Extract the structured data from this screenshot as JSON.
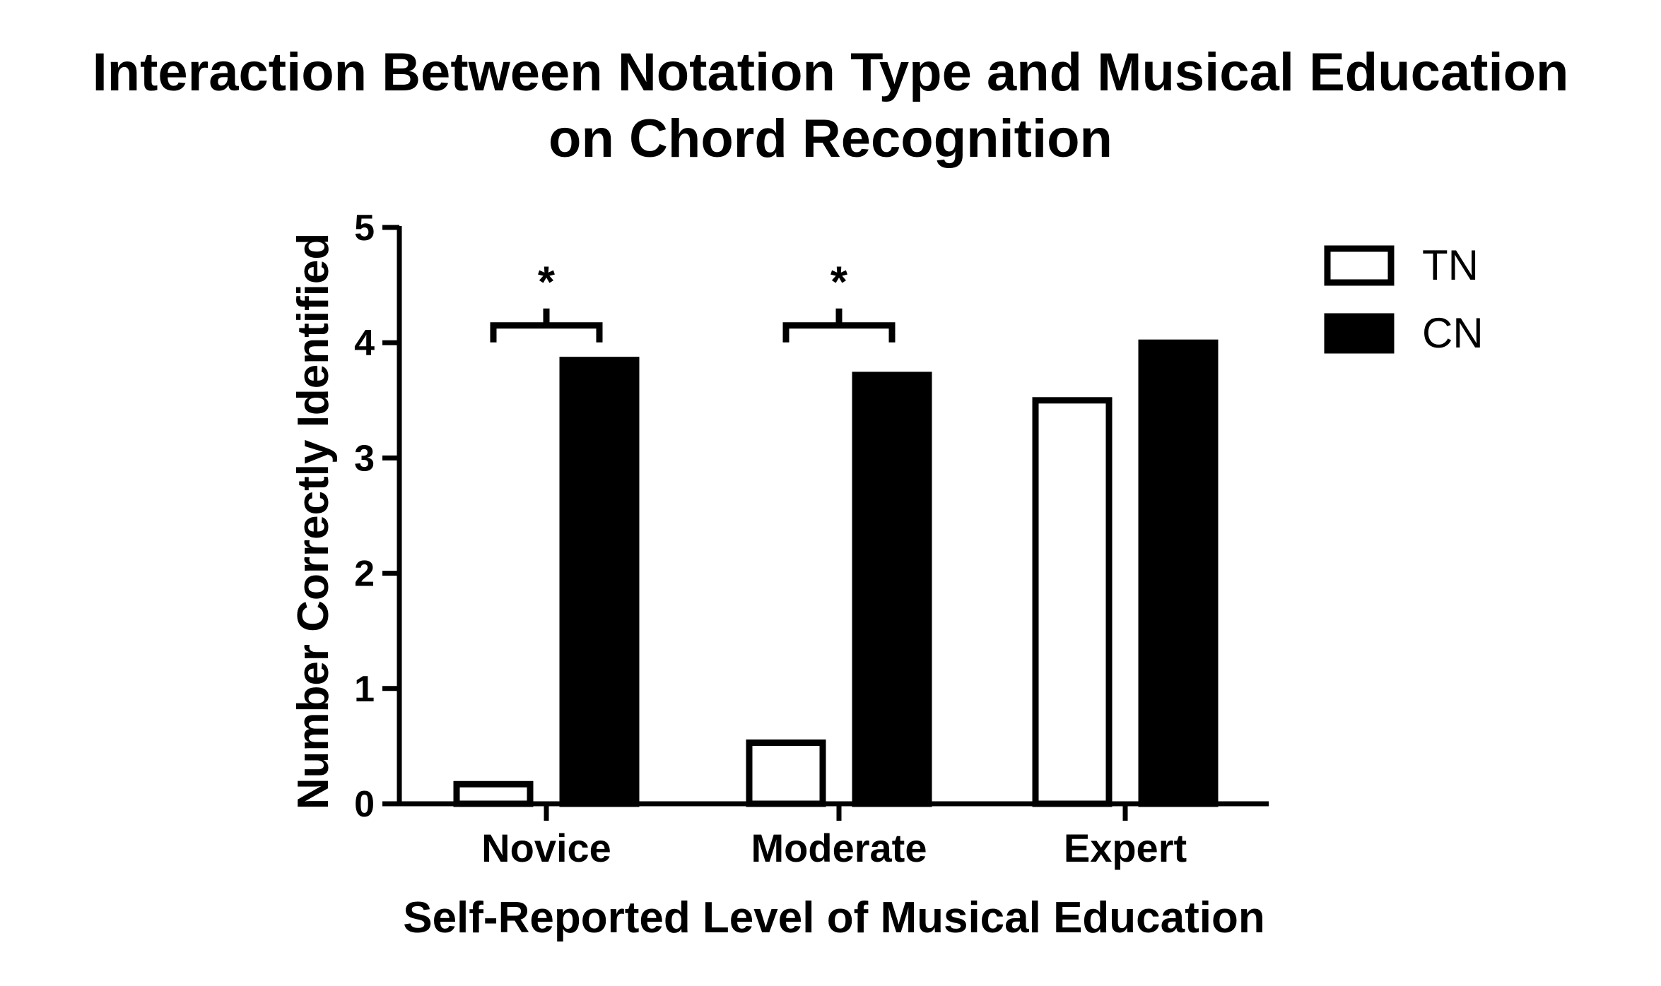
{
  "chart_data": {
    "type": "bar",
    "title_lines": [
      "Interaction Between Notation Type and Musical Education",
      "on Chord Recognition"
    ],
    "xlabel": "Self-Reported Level of Musical Education",
    "ylabel": "Number Correctly  Identified",
    "categories": [
      "Novice",
      "Moderate",
      "Expert"
    ],
    "ylim": [
      0,
      5
    ],
    "yticks": [
      "0",
      "1",
      "2",
      "3",
      "4",
      "5"
    ],
    "series": [
      {
        "name": "TN",
        "values": [
          0.17,
          0.53,
          3.5
        ],
        "fill": "#ffffff",
        "stroke": "#000000"
      },
      {
        "name": "CN",
        "values": [
          3.85,
          3.72,
          4.0
        ],
        "fill": "#000000",
        "stroke": "#000000"
      }
    ],
    "significance": [
      {
        "category": "Novice",
        "label": "*",
        "bracket_y": 4.15
      },
      {
        "category": "Moderate",
        "label": "*",
        "bracket_y": 4.15
      }
    ],
    "legend_position": "top-right",
    "grid": false
  }
}
